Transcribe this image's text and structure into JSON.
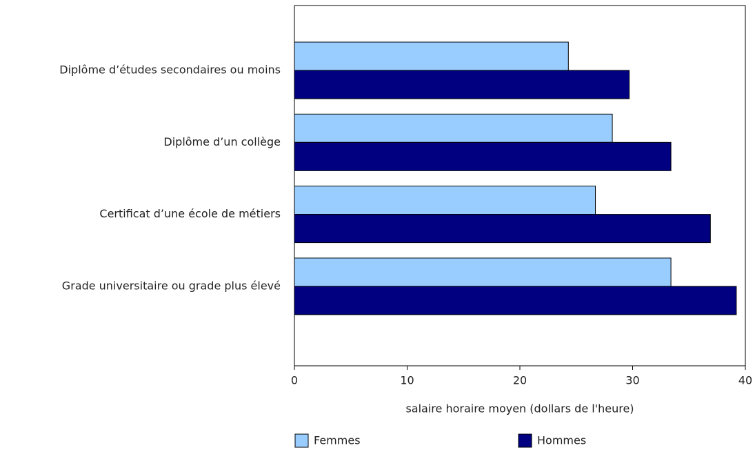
{
  "chart_data": {
    "type": "bar",
    "orientation": "horizontal",
    "categories": [
      "Diplôme d’études secondaires ou moins",
      "Diplôme d’un collège",
      "Certificat d’une école de métiers",
      "Grade universitaire ou grade plus élevé"
    ],
    "series": [
      {
        "name": "Femmes",
        "color": "#99ccff",
        "values": [
          24.3,
          28.2,
          26.7,
          33.4
        ]
      },
      {
        "name": "Hommes",
        "color": "#000080",
        "values": [
          29.7,
          33.4,
          36.9,
          39.2
        ]
      }
    ],
    "xlabel": "salaire horaire moyen (dollars de l'heure)",
    "xlim": [
      0,
      40
    ],
    "xticks": [
      0,
      10,
      20,
      30,
      40
    ],
    "grid": false,
    "legend": "bottom"
  }
}
